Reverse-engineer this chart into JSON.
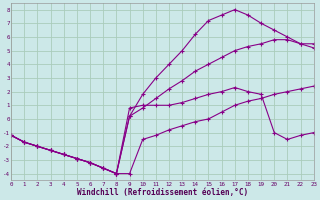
{
  "xlabel": "Windchill (Refroidissement éolien,°C)",
  "background_color": "#cce8e8",
  "grid_color": "#aaccbb",
  "line_color": "#880088",
  "xlim": [
    0,
    23
  ],
  "ylim": [
    -4.5,
    8.5
  ],
  "xticks": [
    0,
    1,
    2,
    3,
    4,
    5,
    6,
    7,
    8,
    9,
    10,
    11,
    12,
    13,
    14,
    15,
    16,
    17,
    18,
    19,
    20,
    21,
    22,
    23
  ],
  "yticks": [
    -4,
    -3,
    -2,
    -1,
    0,
    1,
    2,
    3,
    4,
    5,
    6,
    7,
    8
  ],
  "line1_x": [
    0,
    1,
    2,
    3,
    4,
    5,
    6,
    7,
    8,
    9,
    10,
    11,
    12,
    13,
    14,
    15,
    16,
    17,
    18,
    19,
    20,
    21,
    22,
    23
  ],
  "line1_y": [
    -1.2,
    -1.7,
    -2.0,
    -2.3,
    -2.6,
    -2.9,
    -3.2,
    -3.6,
    -4.0,
    -4.0,
    -1.5,
    -1.2,
    -0.8,
    -0.5,
    -0.2,
    0.0,
    0.5,
    1.0,
    1.3,
    1.5,
    1.8,
    2.0,
    2.2,
    2.4
  ],
  "line2_x": [
    0,
    1,
    2,
    3,
    4,
    5,
    6,
    7,
    8,
    9,
    10,
    11,
    12,
    13,
    14,
    15,
    16,
    17,
    18,
    19,
    20,
    21,
    22,
    23
  ],
  "line2_y": [
    -1.2,
    -1.7,
    -2.0,
    -2.3,
    -2.6,
    -2.9,
    -3.2,
    -3.6,
    -4.0,
    0.2,
    1.8,
    3.0,
    4.0,
    5.0,
    6.2,
    7.2,
    7.6,
    8.0,
    7.6,
    7.0,
    6.5,
    6.0,
    5.5,
    5.5
  ],
  "line3_x": [
    0,
    1,
    2,
    3,
    4,
    5,
    6,
    7,
    8,
    9,
    10,
    11,
    12,
    13,
    14,
    15,
    16,
    17,
    18,
    19,
    20,
    21,
    22,
    23
  ],
  "line3_y": [
    -1.2,
    -1.7,
    -2.0,
    -2.3,
    -2.6,
    -2.9,
    -3.2,
    -3.6,
    -4.0,
    0.2,
    0.8,
    1.5,
    2.2,
    2.8,
    3.5,
    4.0,
    4.5,
    5.0,
    5.3,
    5.5,
    5.8,
    5.8,
    5.5,
    5.2
  ],
  "line4_x": [
    0,
    1,
    2,
    3,
    4,
    5,
    6,
    7,
    8,
    9,
    10,
    11,
    12,
    13,
    14,
    15,
    16,
    17,
    18,
    19,
    20,
    21,
    22,
    23
  ],
  "line4_y": [
    -1.2,
    -1.7,
    -2.0,
    -2.3,
    -2.6,
    -2.9,
    -3.2,
    -3.6,
    -4.0,
    0.8,
    1.0,
    1.0,
    1.0,
    1.2,
    1.5,
    1.8,
    2.0,
    2.3,
    2.0,
    1.8,
    -1.0,
    -1.5,
    -1.2,
    -1.0
  ]
}
